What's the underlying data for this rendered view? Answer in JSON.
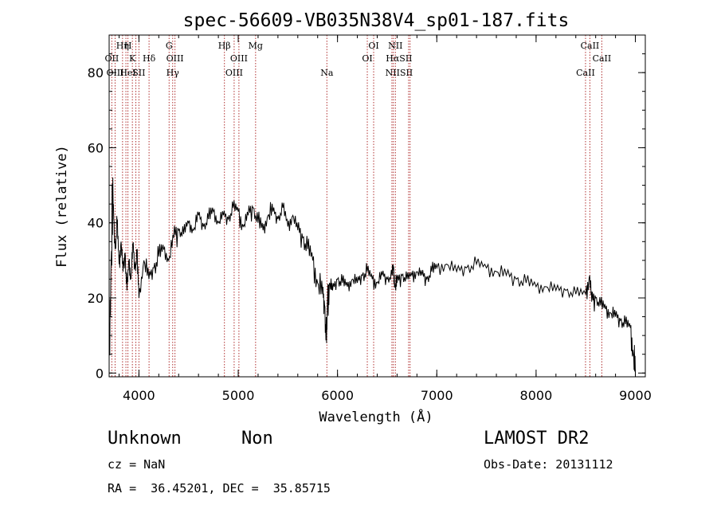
{
  "chart_data": {
    "type": "line",
    "title": "spec-56609-VB035N38V4_sp01-187.fits",
    "xlabel": "Wavelength (Å)",
    "ylabel": "Flux (relative)",
    "xlim": [
      3700,
      9100
    ],
    "ylim": [
      -1,
      90
    ],
    "xticks": [
      4000,
      5000,
      6000,
      7000,
      8000,
      9000
    ],
    "xticks_minor_step": 200,
    "yticks": [
      0,
      20,
      40,
      60,
      80
    ],
    "yticks_minor_step": 5,
    "grid": false,
    "series": [
      {
        "x": [
          3700,
          3720,
          3740,
          3760,
          3780,
          3800,
          3820,
          3840,
          3860,
          3880,
          3900,
          3920,
          3940,
          3960,
          3980,
          4000,
          4050,
          4100,
          4150,
          4200,
          4250,
          4300,
          4350,
          4400,
          4450,
          4500,
          4550,
          4600,
          4650,
          4700,
          4750,
          4800,
          4850,
          4900,
          4950,
          5000,
          5050,
          5100,
          5150,
          5200,
          5250,
          5300,
          5350,
          5400,
          5450,
          5500,
          5550,
          5600,
          5650,
          5700,
          5750,
          5800,
          5850,
          5870,
          5890,
          5900,
          5920,
          5950,
          6000,
          6050,
          6100,
          6150,
          6200,
          6250,
          6300,
          6350,
          6400,
          6450,
          6500,
          6550,
          6563,
          6580,
          6600,
          6650,
          6700,
          6750,
          6800,
          6850,
          6900,
          6950,
          7000,
          7100,
          7200,
          7300,
          7400,
          7500,
          7600,
          7700,
          7800,
          7900,
          8000,
          8100,
          8200,
          8300,
          8400,
          8500,
          8540,
          8560,
          8600,
          8650,
          8700,
          8750,
          8800,
          8850,
          8900,
          8950,
          8980,
          9000
        ],
        "y": [
          5,
          30,
          45,
          33,
          40,
          29,
          35,
          27,
          32,
          22,
          30,
          25,
          34,
          28,
          31,
          20,
          30,
          25,
          28,
          31,
          33,
          30,
          36,
          38,
          37,
          40,
          38,
          42,
          39,
          41,
          43,
          40,
          42,
          41,
          44,
          43,
          39,
          42,
          44,
          40,
          38,
          42,
          43,
          41,
          44,
          39,
          42,
          38,
          36,
          33,
          30,
          24,
          21,
          18,
          8,
          20,
          24,
          22,
          25,
          24,
          23,
          25,
          24,
          26,
          27,
          25,
          24,
          26,
          25,
          26,
          28,
          23,
          24,
          26,
          25,
          26,
          27,
          26,
          25,
          27,
          28,
          29,
          27,
          28,
          29,
          28,
          27,
          26,
          25,
          24,
          23,
          23,
          22,
          22,
          21,
          21,
          26,
          19,
          20,
          18,
          17,
          16,
          15,
          14,
          13,
          12,
          5,
          0
        ]
      }
    ],
    "spectral_lines": [
      {
        "label": "OII",
        "x": 3727,
        "row": 2
      },
      {
        "label": "OIII",
        "x": 3760,
        "row": 3
      },
      {
        "label": "Hη",
        "x": 3835,
        "row": 1
      },
      {
        "label": "H",
        "x": 3890,
        "row": 1
      },
      {
        "label": "HeI",
        "x": 3889,
        "row": 3
      },
      {
        "label": "K",
        "x": 3934,
        "row": 2
      },
      {
        "label": "SII",
        "x": 4000,
        "row": 3
      },
      {
        "label": "Hδ",
        "x": 4102,
        "row": 2
      },
      {
        "label": "G",
        "x": 4304,
        "row": 1
      },
      {
        "label": "OIII",
        "x": 4363,
        "row": 2
      },
      {
        "label": "Hγ",
        "x": 4340,
        "row": 3
      },
      {
        "label": "Hβ",
        "x": 4861,
        "row": 1
      },
      {
        "label": "OIII",
        "x": 5007,
        "row": 2
      },
      {
        "label": "OIII",
        "x": 4959,
        "row": 3
      },
      {
        "label": "Mg",
        "x": 5175,
        "row": 1
      },
      {
        "label": "Na",
        "x": 5893,
        "row": 3
      },
      {
        "label": "OI",
        "x": 6364,
        "row": 1
      },
      {
        "label": "OI",
        "x": 6300,
        "row": 2
      },
      {
        "label": "NII",
        "x": 6583,
        "row": 1
      },
      {
        "label": "HαSII",
        "x": 6620,
        "row": 2
      },
      {
        "label": "NIISII",
        "x": 6620,
        "row": 3
      },
      {
        "label": "CaII",
        "x": 8542,
        "row": 1
      },
      {
        "label": "CaII",
        "x": 8662,
        "row": 2
      },
      {
        "label": "CaII",
        "x": 8498,
        "row": 3
      }
    ],
    "line_markers_x": [
      3727,
      3760,
      3835,
      3869,
      3889,
      3934,
      3969,
      4000,
      4102,
      4304,
      4340,
      4363,
      4861,
      4959,
      5007,
      5175,
      5893,
      6300,
      6364,
      6548,
      6563,
      6583,
      6716,
      6731,
      8498,
      8542,
      8662
    ]
  },
  "info": {
    "object_class": "Unknown",
    "subclass": "Non",
    "cz": "cz = NaN",
    "coords": "RA =  36.45201, DEC =  35.85715",
    "survey": "LAMOST DR2",
    "obs_date": "Obs-Date: 20131112"
  }
}
